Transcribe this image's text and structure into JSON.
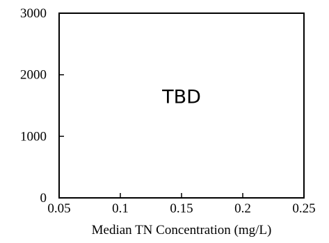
{
  "chart_data": {
    "type": "scatter",
    "title": "",
    "xlabel": "Median TN Concentration (mg/L)",
    "ylabel": "",
    "xlim": [
      0.05,
      0.25
    ],
    "ylim": [
      0,
      3000
    ],
    "xticks": [
      0.05,
      0.1,
      0.15,
      0.2,
      0.25
    ],
    "xtick_labels": [
      "0.05",
      "0.1",
      "0.15",
      "0.2",
      "0.25"
    ],
    "yticks": [
      0,
      1000,
      2000,
      3000
    ],
    "ytick_labels": [
      "0",
      "1000",
      "2000",
      "3000"
    ],
    "grid": false,
    "series": [],
    "annotations": [
      {
        "text": "TBD",
        "x": 0.15,
        "y": 1650
      }
    ]
  }
}
